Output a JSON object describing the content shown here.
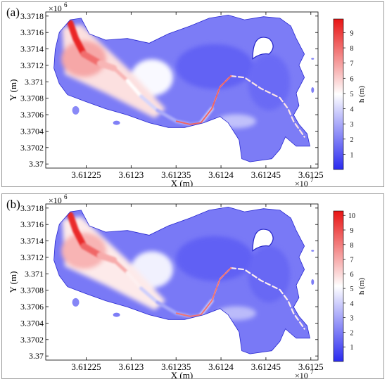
{
  "chart_data": [
    {
      "panel_label": "(a)",
      "type": "heatmap",
      "title": "",
      "xlabel": "X (m)",
      "ylabel": "Y (m)",
      "x_ticks": [
        "3.61225",
        "3.6123",
        "3.61235",
        "3.6124",
        "3.61245",
        "3.6125"
      ],
      "x_tick_values": [
        3.61225,
        3.6123,
        3.61235,
        3.6124,
        3.61245,
        3.6125
      ],
      "x_multiplier": "×10",
      "x_multiplier_exp": "7",
      "xlim": [
        3.612205,
        3.612508
      ],
      "y_ticks": [
        "3.37",
        "3.3702",
        "3.3704",
        "3.3706",
        "3.3708",
        "3.371",
        "3.3712",
        "3.3714",
        "3.3716",
        "3.3718"
      ],
      "y_tick_values": [
        3.37,
        3.3702,
        3.3704,
        3.3706,
        3.3708,
        3.371,
        3.3712,
        3.3714,
        3.3716,
        3.3718
      ],
      "y_multiplier": "×10",
      "y_multiplier_exp": "6",
      "ylim": [
        3.36995,
        3.37185
      ],
      "colorbar_label": "h (m)",
      "colorbar_ticks": [
        "1",
        "2",
        "3",
        "4",
        "5",
        "6",
        "7",
        "8",
        "9"
      ],
      "colorbar_tick_values": [
        1,
        2,
        3,
        4,
        5,
        6,
        7,
        8,
        9
      ],
      "colorbar_range": [
        0,
        9.9
      ],
      "colormap": [
        "#2a2af0",
        "#ffffff",
        "#e81414"
      ],
      "hot_channel_values": [
        9.5,
        8,
        6.5,
        5,
        4,
        3,
        2.5,
        4
      ]
    },
    {
      "panel_label": "(b)",
      "type": "heatmap",
      "title": "",
      "xlabel": "X (m)",
      "ylabel": "Y (m)",
      "x_ticks": [
        "3.61225",
        "3.6123",
        "3.61235",
        "3.6124",
        "3.61245",
        "3.6125"
      ],
      "x_tick_values": [
        3.61225,
        3.6123,
        3.61235,
        3.6124,
        3.61245,
        3.6125
      ],
      "x_multiplier": "×10",
      "x_multiplier_exp": "7",
      "xlim": [
        3.612205,
        3.612508
      ],
      "y_ticks": [
        "3.37",
        "3.3702",
        "3.3704",
        "3.3706",
        "3.3708",
        "3.371",
        "3.3712",
        "3.3714",
        "3.3716",
        "3.3718"
      ],
      "y_tick_values": [
        3.37,
        3.3702,
        3.3704,
        3.3706,
        3.3708,
        3.371,
        3.3712,
        3.3714,
        3.3716,
        3.3718
      ],
      "y_multiplier": "×10",
      "y_multiplier_exp": "6",
      "ylim": [
        3.36995,
        3.37185
      ],
      "colorbar_label": "h (m)",
      "colorbar_ticks": [
        "1",
        "2",
        "3",
        "4",
        "5",
        "6",
        "7",
        "8",
        "9",
        "10"
      ],
      "colorbar_tick_values": [
        1,
        2,
        3,
        4,
        5,
        6,
        7,
        8,
        9,
        10
      ],
      "colorbar_range": [
        0,
        10.3
      ],
      "colormap": [
        "#2a2af0",
        "#ffffff",
        "#e81414"
      ],
      "hot_channel_values": [
        9.8,
        8.5,
        7,
        5.5,
        4,
        3,
        2.5,
        4
      ]
    }
  ]
}
